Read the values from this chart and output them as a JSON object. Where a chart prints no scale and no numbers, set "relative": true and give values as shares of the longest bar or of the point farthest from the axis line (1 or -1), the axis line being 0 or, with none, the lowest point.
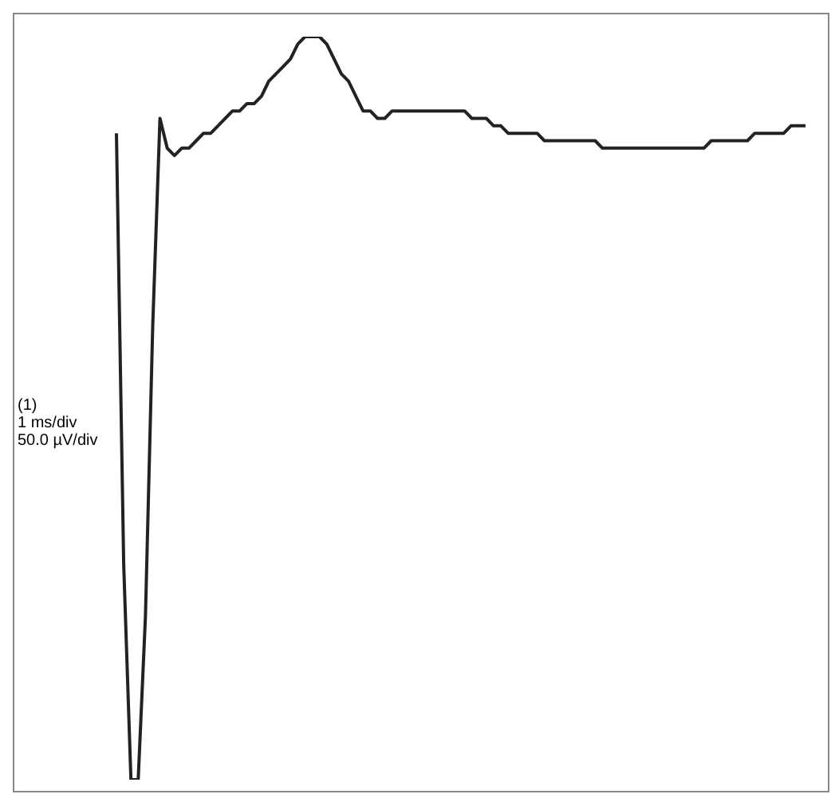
{
  "chart_data": {
    "type": "line",
    "relative": true,
    "marker": "none",
    "line_style": "solid",
    "categories": [
      null,
      null,
      null,
      null,
      null,
      null,
      null,
      null,
      null,
      null,
      null,
      null,
      null,
      null,
      null,
      null,
      null,
      null,
      null,
      null,
      null,
      null,
      null,
      null,
      null,
      null,
      null,
      null,
      null,
      null,
      null,
      null,
      null,
      null,
      null,
      null,
      null,
      null,
      null,
      null,
      null,
      null,
      null,
      null,
      null,
      null,
      null,
      null,
      null,
      null,
      null,
      null,
      null,
      null,
      null,
      null,
      null,
      null,
      null,
      null,
      null,
      null,
      null,
      null,
      null,
      null,
      null,
      null,
      null,
      null,
      null,
      null,
      null,
      null,
      null,
      null,
      null,
      null,
      null,
      null,
      null,
      null,
      null,
      null,
      null,
      null,
      null,
      null,
      null,
      null,
      null,
      null,
      null,
      null,
      null,
      null
    ],
    "series": [
      {
        "color": "#222222",
        "values": [
          0.87,
          0.29,
          0,
          0,
          0.22,
          0.61,
          0.89,
          0.85,
          0.84,
          0.85,
          0.85,
          0.86,
          0.87,
          0.87,
          0.88,
          0.89,
          0.9,
          0.9,
          0.91,
          0.91,
          0.92,
          0.94,
          0.95,
          0.96,
          0.97,
          0.99,
          1,
          1,
          1,
          0.99,
          0.97,
          0.95,
          0.94,
          0.92,
          0.9,
          0.9,
          0.89,
          0.89,
          0.9,
          0.9,
          0.9,
          0.9,
          0.9,
          0.9,
          0.9,
          0.9,
          0.9,
          0.9,
          0.9,
          0.89,
          0.89,
          0.89,
          0.88,
          0.88,
          0.87,
          0.87,
          0.87,
          0.87,
          0.87,
          0.86,
          0.86,
          0.86,
          0.86,
          0.86,
          0.86,
          0.86,
          0.86,
          0.85,
          0.85,
          0.85,
          0.85,
          0.85,
          0.85,
          0.85,
          0.85,
          0.85,
          0.85,
          0.85,
          0.85,
          0.85,
          0.85,
          0.85,
          0.86,
          0.86,
          0.86,
          0.86,
          0.86,
          0.86,
          0.87,
          0.87,
          0.87,
          0.87,
          0.87,
          0.88,
          0.88,
          0.88
        ]
      }
    ],
    "annotations": [
      "(1)",
      "1 ms/div",
      "50.0 µV/div"
    ]
  }
}
